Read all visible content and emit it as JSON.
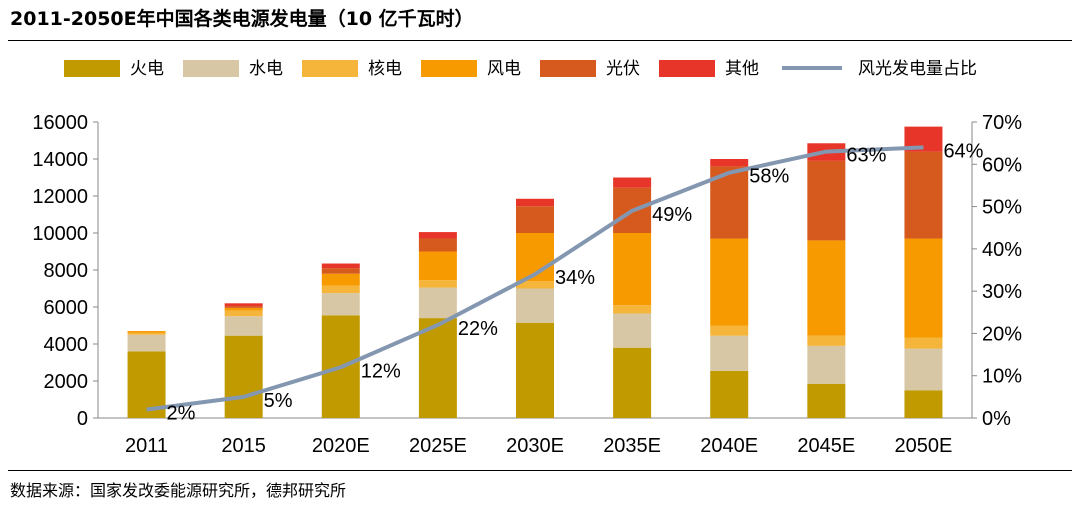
{
  "title": "2011-2050E年中国各类电源发电量（10 亿千瓦时）",
  "source": "数据来源：国家发改委能源研究所，德邦研究所",
  "chart_data": {
    "type": "bar",
    "stacked": true,
    "categories": [
      "2011",
      "2015",
      "2020E",
      "2025E",
      "2030E",
      "2035E",
      "2040E",
      "2045E",
      "2050E"
    ],
    "ylim": [
      0,
      16000
    ],
    "yticks": [
      "0",
      "2000",
      "4000",
      "6000",
      "8000",
      "10000",
      "12000",
      "14000",
      "16000"
    ],
    "y2lim": [
      0,
      70
    ],
    "y2ticks": [
      "0%",
      "10%",
      "20%",
      "30%",
      "40%",
      "50%",
      "60%",
      "70%"
    ],
    "grid": false,
    "legend_position": "top",
    "series": [
      {
        "name": "火电",
        "color": "#C19A00",
        "values": [
          3600,
          4450,
          5550,
          5400,
          5150,
          3800,
          2550,
          1850,
          1500
        ]
      },
      {
        "name": "水电",
        "color": "#D8C7A5",
        "values": [
          900,
          1050,
          1200,
          1650,
          1850,
          1850,
          1900,
          2050,
          2250
        ]
      },
      {
        "name": "核电",
        "color": "#F4B53A",
        "values": [
          100,
          300,
          400,
          400,
          400,
          450,
          550,
          550,
          600
        ]
      },
      {
        "name": "风电",
        "color": "#F79A00",
        "values": [
          100,
          150,
          650,
          1550,
          2600,
          3900,
          4700,
          5150,
          5350
        ]
      },
      {
        "name": "光伏",
        "color": "#D6591E",
        "values": [
          0,
          100,
          300,
          700,
          1450,
          2450,
          3900,
          4300,
          4700
        ]
      },
      {
        "name": "其他",
        "color": "#E8352A",
        "values": [
          0,
          150,
          250,
          350,
          400,
          550,
          400,
          950,
          1350
        ]
      }
    ],
    "line_series": {
      "name": "风光发电量占比",
      "color": "#8497B0",
      "axis": "right",
      "values": [
        2,
        5,
        12,
        22,
        34,
        49,
        58,
        63,
        64
      ],
      "labels": [
        "2%",
        "5%",
        "12%",
        "22%",
        "34%",
        "49%",
        "58%",
        "63%",
        "64%"
      ]
    }
  }
}
